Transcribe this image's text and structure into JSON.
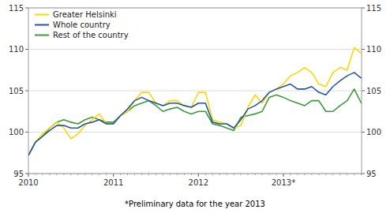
{
  "chart_data": {
    "type": "line",
    "annotations": [
      "*Preliminary data for the year 2013"
    ],
    "x": [
      2010.0,
      2010.083333,
      2010.166667,
      2010.25,
      2010.333333,
      2010.416667,
      2010.5,
      2010.583333,
      2010.666667,
      2010.75,
      2010.833333,
      2010.916667,
      2011.0,
      2011.083333,
      2011.166667,
      2011.25,
      2011.333333,
      2011.416667,
      2011.5,
      2011.583333,
      2011.666667,
      2011.75,
      2011.833333,
      2011.916667,
      2012.0,
      2012.083333,
      2012.166667,
      2012.25,
      2012.333333,
      2012.416667,
      2012.5,
      2012.583333,
      2012.666667,
      2012.75,
      2012.833333,
      2012.916667,
      2013.0,
      2013.083333,
      2013.166667,
      2013.25,
      2013.333333,
      2013.416667,
      2013.5,
      2013.583333,
      2013.666667,
      2013.75,
      2013.833333,
      2013.916667
    ],
    "series": [
      {
        "name": "Greater Helsinki",
        "color": "#FFD700",
        "values": [
          97.2,
          98.8,
          99.8,
          100.5,
          101.2,
          100.5,
          99.2,
          99.8,
          100.8,
          101.5,
          102.2,
          101.0,
          101.0,
          102.0,
          102.5,
          103.8,
          104.8,
          104.8,
          103.5,
          103.2,
          103.8,
          103.8,
          103.2,
          103.0,
          104.8,
          104.8,
          101.5,
          101.2,
          101.0,
          100.5,
          100.8,
          103.0,
          104.5,
          103.5,
          104.8,
          105.2,
          105.8,
          106.8,
          107.2,
          107.8,
          107.2,
          105.8,
          105.5,
          107.2,
          107.8,
          107.5,
          110.2,
          109.5
        ]
      },
      {
        "name": "Whole country",
        "color": "#2255A4",
        "values": [
          97.2,
          98.8,
          99.5,
          100.2,
          100.8,
          100.8,
          100.5,
          100.5,
          101.0,
          101.2,
          101.5,
          101.0,
          101.0,
          102.0,
          102.8,
          103.8,
          104.2,
          103.8,
          103.5,
          103.2,
          103.5,
          103.5,
          103.2,
          103.0,
          103.5,
          103.5,
          101.2,
          101.0,
          101.0,
          100.5,
          101.5,
          102.8,
          103.2,
          103.8,
          104.8,
          105.2,
          105.5,
          105.8,
          105.2,
          105.2,
          105.5,
          104.8,
          104.5,
          105.5,
          106.2,
          106.8,
          107.2,
          106.5
        ]
      },
      {
        "name": "Rest of the country",
        "color": "#3A9B3A",
        "values": [
          97.2,
          98.8,
          99.5,
          100.5,
          101.2,
          101.5,
          101.2,
          101.0,
          101.5,
          101.8,
          101.5,
          101.2,
          101.2,
          102.0,
          102.5,
          103.2,
          103.5,
          103.8,
          103.2,
          102.5,
          102.8,
          103.0,
          102.5,
          102.2,
          102.5,
          102.5,
          101.0,
          100.8,
          100.5,
          100.2,
          101.8,
          102.0,
          102.2,
          102.5,
          104.2,
          104.5,
          104.2,
          103.8,
          103.5,
          103.2,
          103.8,
          103.8,
          102.5,
          102.5,
          103.2,
          103.8,
          105.2,
          103.5
        ]
      }
    ],
    "xlim": [
      2010.0,
      2013.92
    ],
    "xticks": [
      2010,
      2011,
      2012,
      {
        "value": 2013,
        "label": "2013*"
      }
    ],
    "ylim": [
      95,
      115
    ],
    "yticks": [
      95,
      100,
      105,
      110,
      115
    ],
    "y2lim": [
      95,
      115
    ],
    "y2ticks": [
      95,
      100,
      105,
      110,
      115
    ],
    "grid": true,
    "legend": "upper left"
  }
}
